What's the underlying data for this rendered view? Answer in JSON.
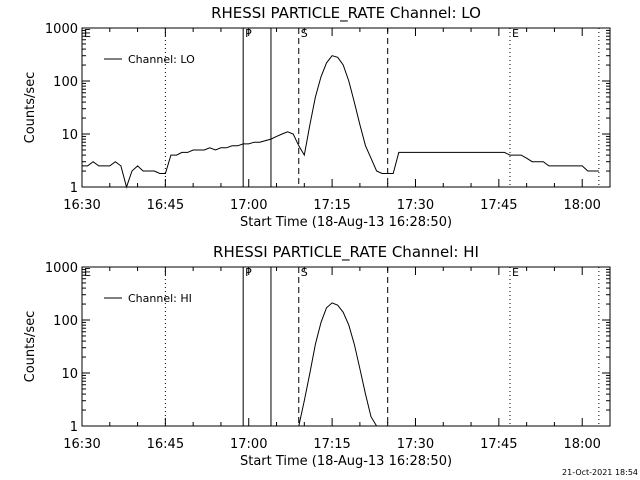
{
  "footer": {
    "timestamp": "21-Oct-2021 18:54"
  },
  "chart_data": [
    {
      "type": "line",
      "title": "RHESSI PARTICLE_RATE Channel: LO",
      "xlabel": "Start Time (18-Aug-13 16:28:50)",
      "ylabel": "Counts/sec",
      "yscale": "log",
      "ylim": [
        1,
        1000
      ],
      "xlim": [
        "16:30",
        "18:05"
      ],
      "x_ticks": [
        "16:30",
        "16:45",
        "17:00",
        "17:15",
        "17:30",
        "17:45",
        "18:00"
      ],
      "y_ticks": [
        "1",
        "10",
        "100",
        "1000"
      ],
      "legend": "top-left",
      "markers": [
        {
          "x": "16:30",
          "label": "E",
          "style": "dotted"
        },
        {
          "x": "16:45",
          "label": "",
          "style": "dotted"
        },
        {
          "x": "16:59",
          "label": "P",
          "style": "solid"
        },
        {
          "x": "17:04",
          "label": "",
          "style": "solid"
        },
        {
          "x": "17:09",
          "label": "S",
          "style": "dashed"
        },
        {
          "x": "17:25",
          "label": "",
          "style": "dashed"
        },
        {
          "x": "17:47",
          "label": "E",
          "style": "dotted"
        },
        {
          "x": "18:03",
          "label": "",
          "style": "dotted"
        }
      ],
      "series": [
        {
          "name": "Channel: LO",
          "x": [
            "16:30",
            "16:31",
            "16:32",
            "16:33",
            "16:34",
            "16:35",
            "16:36",
            "16:37",
            "16:38",
            "16:39",
            "16:40",
            "16:41",
            "16:42",
            "16:43",
            "16:44",
            "16:45",
            "16:46",
            "16:47",
            "16:48",
            "16:49",
            "16:50",
            "16:51",
            "16:52",
            "16:53",
            "16:54",
            "16:55",
            "16:56",
            "16:57",
            "16:58",
            "16:59",
            "17:00",
            "17:01",
            "17:02",
            "17:03",
            "17:04",
            "17:05",
            "17:06",
            "17:07",
            "17:08",
            "17:09",
            "17:10",
            "17:11",
            "17:12",
            "17:13",
            "17:14",
            "17:15",
            "17:16",
            "17:17",
            "17:18",
            "17:19",
            "17:20",
            "17:21",
            "17:22",
            "17:23",
            "17:24",
            "17:25",
            "17:26",
            "17:27",
            "17:28",
            "17:29",
            "17:30",
            "17:31",
            "17:32",
            "17:33",
            "17:34",
            "17:35",
            "17:36",
            "17:37",
            "17:38",
            "17:39",
            "17:40",
            "17:41",
            "17:42",
            "17:43",
            "17:44",
            "17:45",
            "17:46",
            "17:47",
            "17:48",
            "17:49",
            "17:50",
            "17:51",
            "17:52",
            "17:53",
            "17:54",
            "17:55",
            "17:56",
            "17:57",
            "17:58",
            "17:59",
            "18:00",
            "18:01",
            "18:02",
            "18:03"
          ],
          "y": [
            2.5,
            2.5,
            3,
            2.5,
            2.5,
            2.5,
            3,
            2.5,
            1,
            2,
            2.5,
            2,
            2,
            2,
            1.8,
            1.8,
            4,
            4,
            4.5,
            4.5,
            5,
            5,
            5,
            5.5,
            5,
            5.5,
            5.5,
            6,
            6,
            6.5,
            6.5,
            7,
            7,
            7.5,
            8,
            9,
            10,
            11,
            10,
            6,
            4,
            15,
            50,
            120,
            220,
            300,
            280,
            200,
            100,
            40,
            15,
            6,
            3.5,
            2,
            1.8,
            1.8,
            1.8,
            4.5,
            4.5,
            4.5,
            4.5,
            4.5,
            4.5,
            4.5,
            4.5,
            4.5,
            4.5,
            4.5,
            4.5,
            4.5,
            4.5,
            4.5,
            4.5,
            4.5,
            4.5,
            4.5,
            4.5,
            4,
            4,
            4,
            3.5,
            3,
            3,
            3,
            2.5,
            2.5,
            2.5,
            2.5,
            2.5,
            2.5,
            2.5,
            2,
            2,
            2
          ]
        }
      ]
    },
    {
      "type": "line",
      "title": "RHESSI PARTICLE_RATE Channel: HI",
      "xlabel": "Start Time (18-Aug-13 16:28:50)",
      "ylabel": "Counts/sec",
      "yscale": "log",
      "ylim": [
        1,
        1000
      ],
      "xlim": [
        "16:30",
        "18:05"
      ],
      "x_ticks": [
        "16:30",
        "16:45",
        "17:00",
        "17:15",
        "17:30",
        "17:45",
        "18:00"
      ],
      "y_ticks": [
        "1",
        "10",
        "100",
        "1000"
      ],
      "legend": "top-left",
      "markers": [
        {
          "x": "16:30",
          "label": "E",
          "style": "dotted"
        },
        {
          "x": "16:45",
          "label": "",
          "style": "dotted"
        },
        {
          "x": "16:59",
          "label": "P",
          "style": "solid"
        },
        {
          "x": "17:04",
          "label": "",
          "style": "solid"
        },
        {
          "x": "17:09",
          "label": "S",
          "style": "dashed"
        },
        {
          "x": "17:25",
          "label": "",
          "style": "dashed"
        },
        {
          "x": "17:47",
          "label": "E",
          "style": "dotted"
        },
        {
          "x": "18:03",
          "label": "",
          "style": "dotted"
        }
      ],
      "series": [
        {
          "name": "Channel: HI",
          "x": [
            "17:09",
            "17:10",
            "17:11",
            "17:12",
            "17:13",
            "17:14",
            "17:15",
            "17:16",
            "17:17",
            "17:18",
            "17:19",
            "17:20",
            "17:21",
            "17:22",
            "17:23"
          ],
          "y": [
            1,
            3,
            10,
            35,
            90,
            170,
            210,
            190,
            140,
            80,
            35,
            12,
            4,
            1.5,
            1
          ]
        }
      ]
    }
  ]
}
